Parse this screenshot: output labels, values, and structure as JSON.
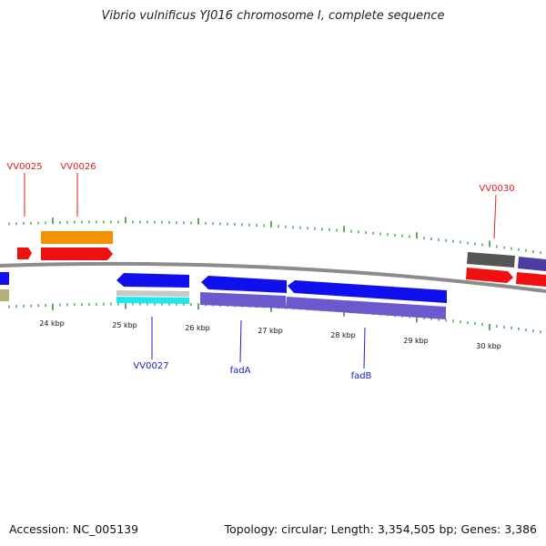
{
  "header": {
    "title": "Vibrio vulnificus YJ016 chromosome I, complete sequence"
  },
  "footer": {
    "accession": "Accession: NC_005139",
    "summary": "Topology: circular; Length: 3,354,505 bp; Genes: 3,386"
  },
  "colors": {
    "backbone": "#8c8c8c",
    "tick": "#2e9a2e",
    "forward_label": "#e0201e",
    "reverse_label": "#1c1cd0",
    "cds_red": "#f01010",
    "cds_orange": "#f39200",
    "cds_blue": "#1010ee",
    "cds_purple": "#6a5acd",
    "cds_cyan": "#22e6ee",
    "cds_gray": "#c8c8c8",
    "cds_darkgray": "#555555",
    "cds_olive": "#b3b07a",
    "cds_indigo": "#4b3ea0"
  },
  "axis": {
    "tick_labels": [
      "24 kbp",
      "25 kbp",
      "26 kbp",
      "27 kbp",
      "28 kbp",
      "29 kbp",
      "30 kbp"
    ]
  },
  "gene_labels": {
    "forward": [
      "VV0025",
      "VV0026",
      "VV0030"
    ],
    "reverse": [
      "VV0027",
      "fadA",
      "fadB"
    ]
  }
}
